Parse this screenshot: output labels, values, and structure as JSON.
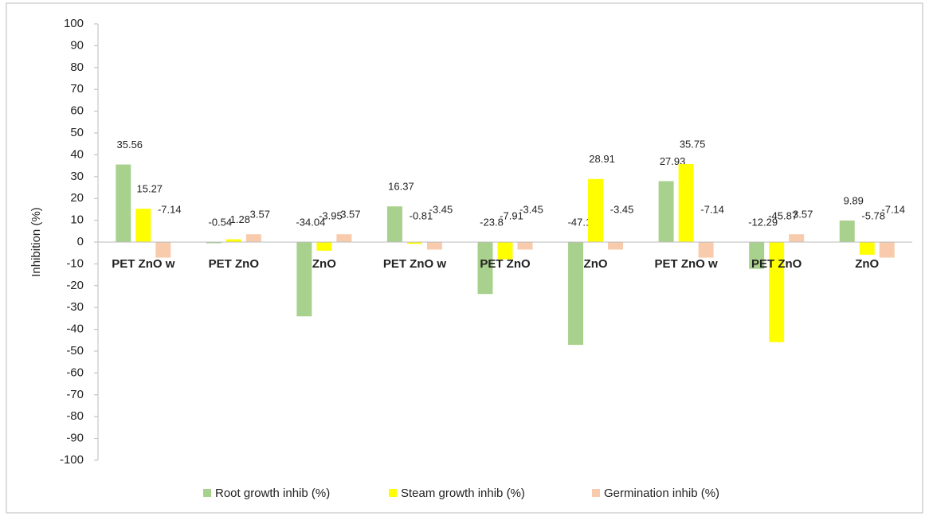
{
  "chart_data": {
    "type": "bar",
    "y_label": "Inhibition (%)",
    "categories": [
      "PET ZnO w",
      "PET ZnO",
      "ZnO",
      "PET ZnO w",
      "PET ZnO",
      "ZnO",
      "PET ZnO w",
      "PET ZnO",
      "ZnO"
    ],
    "series": [
      {
        "name": "Root growth inhib (%)",
        "color": "#a9d18e",
        "values": [
          35.56,
          -0.54,
          -34.04,
          16.37,
          -23.8,
          -47.11,
          27.93,
          -12.29,
          9.89
        ]
      },
      {
        "name": "Steam growth inhib (%)",
        "color": "#ffff00",
        "values": [
          15.27,
          1.28,
          -3.95,
          -0.81,
          -7.91,
          28.91,
          35.75,
          -45.87,
          -5.78
        ]
      },
      {
        "name": "Germination inhib (%)",
        "color": "#f8cbad",
        "values": [
          -7.14,
          3.57,
          3.57,
          -3.45,
          -3.45,
          -3.45,
          -7.14,
          3.57,
          -7.14
        ]
      }
    ],
    "ylim": [
      -100,
      100
    ],
    "yticks": [
      -100,
      -90,
      -80,
      -70,
      -60,
      -50,
      -40,
      -30,
      -20,
      -10,
      0,
      10,
      20,
      30,
      40,
      50,
      60,
      70,
      80,
      90,
      100
    ],
    "legend": "bottom"
  }
}
